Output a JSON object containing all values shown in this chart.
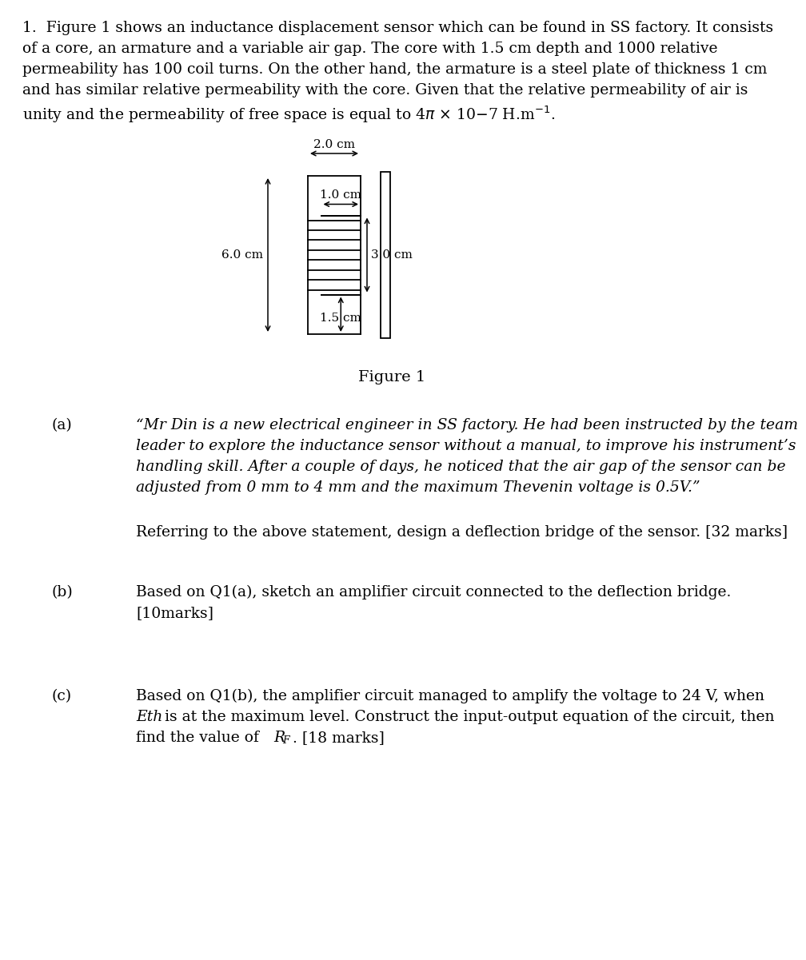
{
  "background_color": "#ffffff",
  "text_color": "#000000",
  "font_size_body": 13.5,
  "font_size_label": 11,
  "font_size_caption": 13,
  "part_a_label": "(a)",
  "part_b_label": "(b)",
  "part_c_label": "(c)",
  "figure_caption": "Figure 1",
  "dim_2cm": "2.0 cm",
  "dim_1cm": "1.0 cm",
  "dim_6cm": "6.0 cm",
  "dim_3cm": "3.0 cm",
  "dim_15cm": "1.5 cm",
  "line_color": "#000000",
  "coil_color": "#000000",
  "intro_line1": "1.  Figure 1 shows an inductance displacement sensor which can be found in SS factory. It consists",
  "intro_line2": "of a core, an armature and a variable air gap. The core with 1.5 cm depth and 1000 relative",
  "intro_line3": "permeability has 100 coil turns. On the other hand, the armature is a steel plate of thickness 1 cm",
  "intro_line4": "and has similar relative permeability with the core. Given that the relative permeability of air is",
  "intro_line5": "unity and the permeability of free space is equal to 4π × 10−7 H.m⁻¹.",
  "italic_line1": "“Mr Din is a new electrical engineer in SS factory. He had been instructed by the team",
  "italic_line2": "leader to explore the inductance sensor without a manual, to improve his instrument’s",
  "italic_line3": "handling skill. After a couple of days, he noticed that the air gap of the sensor can be",
  "italic_line4": "adjusted from 0 mm to 4 mm and the maximum Thevenin voltage is 0.5V.”",
  "refer_text": "Referring to the above statement, design a deflection bridge of the sensor. [32 marks]",
  "part_b_line1": "Based on Q1(a), sketch an amplifier circuit connected to the deflection bridge.",
  "part_b_line2": "[10marks]",
  "part_c_line1": "Based on Q1(b), the amplifier circuit managed to amplify the voltage to 24 V, when",
  "part_c_line2a": "Eth",
  "part_c_line2b": " is at the maximum level. Construct the input-output equation of the circuit, then",
  "part_c_line3a": "find the value of ",
  "part_c_line3b": "R",
  "part_c_line3c": "F",
  "part_c_line3d": ". [18 marks]"
}
